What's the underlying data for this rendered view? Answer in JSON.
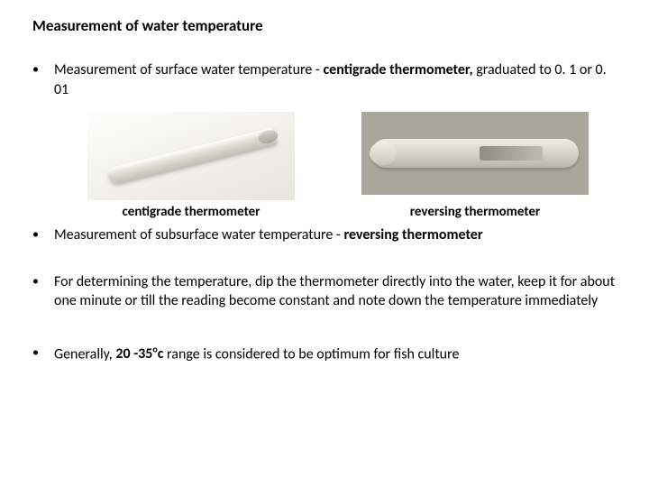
{
  "title": "Measurement of water temperature",
  "bullets": {
    "b1_pre": "Measurement of surface water temperature - ",
    "b1_bold": "centigrade thermometer,",
    "b1_post": " graduated to 0. 1 or 0. 01",
    "b2_pre": "Measurement of subsurface water temperature - ",
    "b2_bold": "reversing thermometer",
    "b3": "For determining the temperature, dip the thermometer directly into the water, keep it for about one minute or till the reading become constant and note down the temperature immediately",
    "b4_pre": "Generally, ",
    "b4_bold": "20 -35",
    "b4_sup": "o",
    "b4_bold2": "c",
    "b4_post": " range is considered to be optimum for fish culture"
  },
  "captions": {
    "left": "centigrade thermometer",
    "right": "reversing thermometer"
  },
  "colors": {
    "text": "#000000",
    "bg": "#ffffff"
  }
}
